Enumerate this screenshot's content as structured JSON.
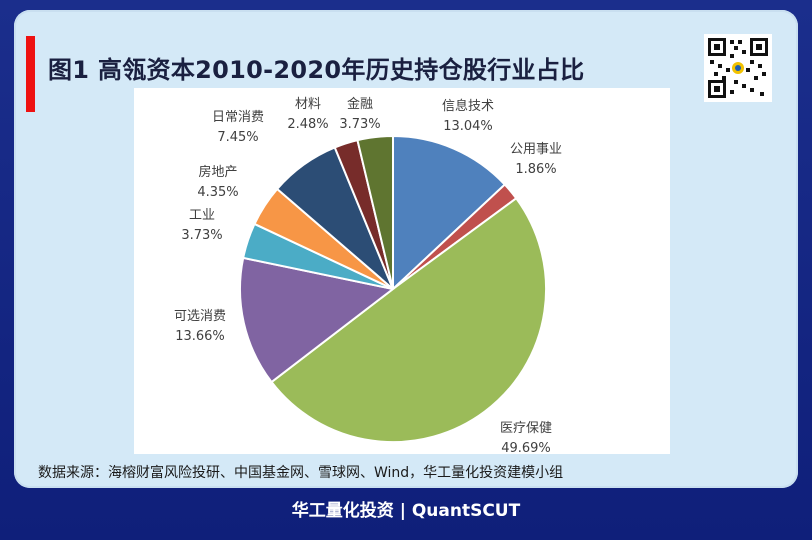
{
  "header": {
    "title": "图1 高瓴资本2010-2020年历史持仓股行业占比"
  },
  "source_note": "数据来源：海榕财富风险投研、中国基金网、雪球网、Wind，华工量化投资建模小组",
  "footer": {
    "brand": "华工量化投资 | QuantSCUT"
  },
  "colors": {
    "accent_bar": "#ee1111",
    "card_bg": "#d4e9f7",
    "page_bg": "#1b2e8c"
  },
  "chart_data": {
    "type": "pie",
    "start_angle_deg": 0,
    "direction": "clockwise",
    "slices": [
      {
        "label": "信息技术",
        "value": 13.04,
        "value_label": "13.04%",
        "color": "#4f81bd"
      },
      {
        "label": "公用事业",
        "value": 1.86,
        "value_label": "1.86%",
        "color": "#c0504d"
      },
      {
        "label": "医疗保健",
        "value": 49.69,
        "value_label": "49.69%",
        "color": "#9bbb59"
      },
      {
        "label": "可选消费",
        "value": 13.66,
        "value_label": "13.66%",
        "color": "#8064a2"
      },
      {
        "label": "工业",
        "value": 3.73,
        "value_label": "3.73%",
        "color": "#4bacc6"
      },
      {
        "label": "房地产",
        "value": 4.35,
        "value_label": "4.35%",
        "color": "#f79646"
      },
      {
        "label": "日常消费",
        "value": 7.45,
        "value_label": "7.45%",
        "color": "#2c4d75"
      },
      {
        "label": "材料",
        "value": 2.48,
        "value_label": "2.48%",
        "color": "#772c2a"
      },
      {
        "label": "金融",
        "value": 3.73,
        "value_label": "3.73%",
        "color": "#5f7530"
      }
    ]
  }
}
